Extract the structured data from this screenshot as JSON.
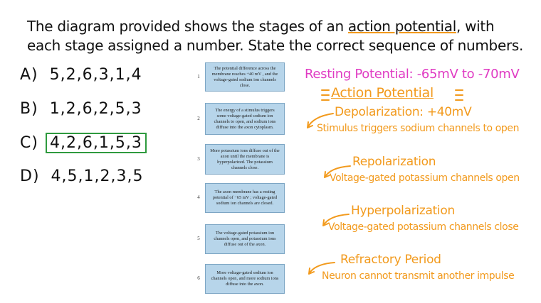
{
  "question": {
    "before": "The diagram provided shows the stages of an ",
    "highlight": "action potential",
    "after": ", with each stage assigned a number. State the correct sequence of numbers."
  },
  "options": [
    {
      "letter": "A)",
      "sequence": "5,2,6,3,1,4"
    },
    {
      "letter": "B)",
      "sequence": "1,2,6,2,5,3"
    },
    {
      "letter": "C)",
      "sequence": "4,2,6,1,5,3"
    },
    {
      "letter": "D)",
      "sequence": "4,5,1,2,3,5"
    }
  ],
  "steps": [
    {
      "number": 1,
      "text": "The potential difference across the membrane reaches +40 mV , and the voltage-gated sodium ion channels close."
    },
    {
      "number": 2,
      "text": "The energy of a stimulus triggers some voltage-gated sodium ion channels to open, and sodium ions diffuse into the axon cytoplasm."
    },
    {
      "number": 3,
      "text": "More potassium ions diffuse out of the axon until the membrane is hyperpolarized. The potassium channels close."
    },
    {
      "number": 4,
      "text": "The axon membrane has a resting potential of −65 mV ; voltage-gated sodium ion channels are closed."
    },
    {
      "number": 5,
      "text": "The voltage-gated potassium ion channels open, and potassium ions diffuse out of the axon."
    },
    {
      "number": 6,
      "text": "More voltage-gated sodium ion channels open, and more sodium ions diffuse into the axon."
    }
  ],
  "notes": {
    "resting": "Resting Potential: -65mV to -70mV",
    "action": "Action Potential",
    "stages": [
      {
        "name": "Depolarization: +40mV",
        "description": "Stimulus triggers sodium channels to open"
      },
      {
        "name": "Repolarization",
        "description": "Voltage-gated potassium channels open"
      },
      {
        "name": "Hyperpolarization",
        "description": "Voltage-gated potassium channels close"
      },
      {
        "name": "Refractory Period",
        "description": "Neuron cannot transmit another impulse"
      }
    ]
  }
}
